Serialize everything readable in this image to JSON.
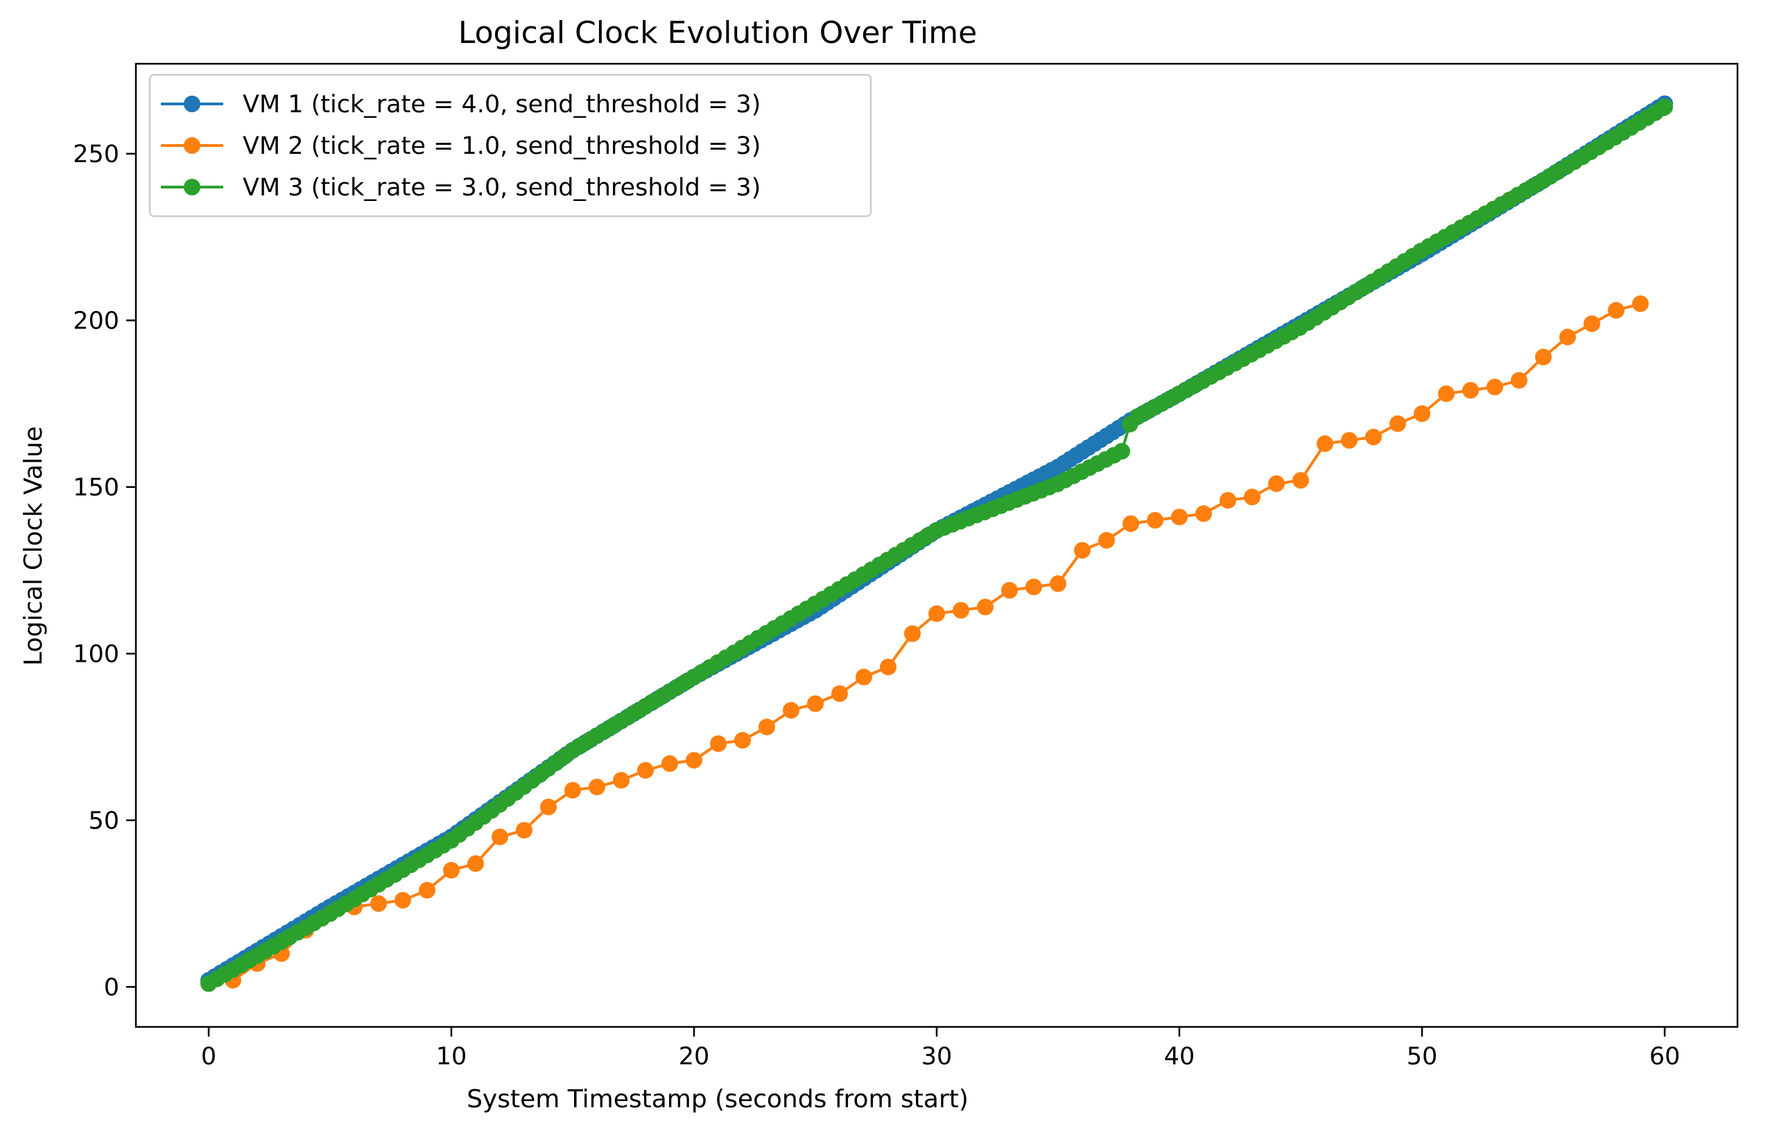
{
  "chart_data": {
    "type": "line",
    "title": "Logical Clock Evolution Over Time",
    "xlabel": "System Timestamp (seconds from start)",
    "ylabel": "Logical Clock Value",
    "xlim": [
      -3,
      63
    ],
    "ylim": [
      -12,
      277
    ],
    "xticks": [
      0,
      10,
      20,
      30,
      40,
      50,
      60
    ],
    "yticks": [
      0,
      50,
      100,
      150,
      200,
      250
    ],
    "grid": false,
    "legend": "top-left",
    "series": [
      {
        "name": "VM 1 (tick_rate = 4.0, send_threshold = 3)",
        "color": "#1f77b4",
        "marker": "circle",
        "style": "dense",
        "dt": 0.25,
        "path": [
          [
            0,
            2
          ],
          [
            5,
            24
          ],
          [
            10,
            45
          ],
          [
            15,
            71
          ],
          [
            20,
            93
          ],
          [
            25,
            113
          ],
          [
            30,
            137
          ],
          [
            35,
            156
          ],
          [
            38,
            170
          ],
          [
            40,
            178
          ],
          [
            45,
            199
          ],
          [
            50,
            220
          ],
          [
            55,
            242
          ],
          [
            60,
            265
          ]
        ]
      },
      {
        "name": "VM 2 (tick_rate = 1.0, send_threshold = 3)",
        "color": "#ff7f0e",
        "marker": "circle",
        "style": "points",
        "x": [
          1,
          2,
          3,
          4,
          5,
          6,
          7,
          8,
          9,
          10,
          11,
          12,
          13,
          14,
          15,
          16,
          17,
          18,
          19,
          20,
          21,
          22,
          23,
          24,
          25,
          26,
          27,
          28,
          29,
          30,
          31,
          32,
          33,
          34,
          35,
          36,
          37,
          38,
          39,
          40,
          41,
          42,
          43,
          44,
          45,
          46,
          47,
          48,
          49,
          50,
          51,
          52,
          53,
          54,
          55,
          56,
          57,
          58,
          59
        ],
        "y": [
          2,
          7,
          10,
          17,
          22,
          24,
          25,
          26,
          29,
          35,
          37,
          45,
          47,
          54,
          59,
          60,
          62,
          65,
          67,
          68,
          73,
          74,
          78,
          83,
          85,
          88,
          93,
          96,
          106,
          112,
          113,
          114,
          119,
          120,
          121,
          131,
          134,
          139,
          140,
          141,
          142,
          146,
          147,
          151,
          152,
          163,
          164,
          165,
          169,
          172,
          178,
          179,
          180,
          182,
          189,
          195,
          199,
          203,
          205
        ]
      },
      {
        "name": "VM 3 (tick_rate = 3.0, send_threshold = 3)",
        "color": "#2ca02c",
        "marker": "circle",
        "style": "dense",
        "dt": 0.333,
        "path": [
          [
            0,
            1
          ],
          [
            5,
            22
          ],
          [
            10,
            44
          ],
          [
            15,
            71
          ],
          [
            20,
            93
          ],
          [
            25,
            115
          ],
          [
            30,
            137
          ],
          [
            35,
            151
          ],
          [
            37.7,
            161
          ],
          [
            38,
            170
          ],
          [
            40,
            178
          ],
          [
            45,
            198
          ],
          [
            50,
            221
          ],
          [
            55,
            242
          ],
          [
            60,
            264
          ]
        ]
      }
    ]
  }
}
